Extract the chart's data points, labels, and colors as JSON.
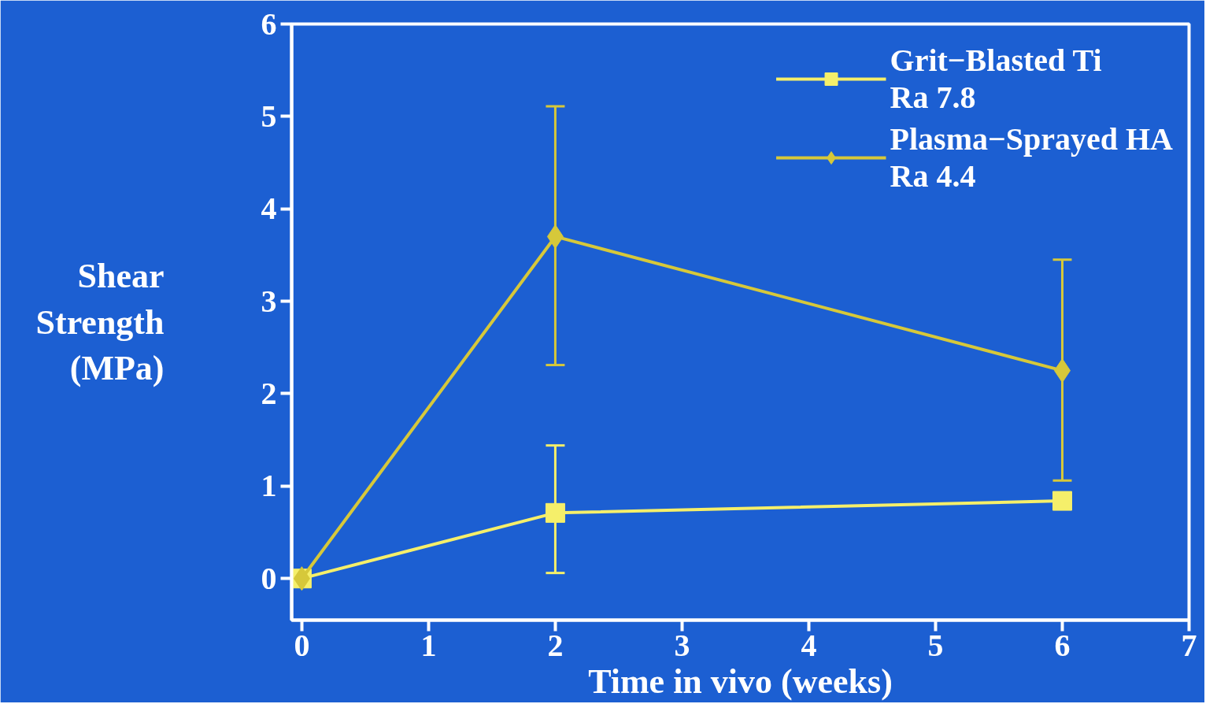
{
  "chart_data": {
    "type": "line",
    "xlabel": "Time in vivo (weeks)",
    "ylabel": "Shear\nStrength\n(MPa)",
    "x": [
      0,
      2,
      6
    ],
    "series": [
      {
        "name": "Grit−Blasted Ti\nRa 7.8",
        "color": "#f5ef6a",
        "marker": "square",
        "values": [
          0,
          0.71,
          0.84
        ],
        "errors": [
          null,
          [
            0.06,
            1.44
          ],
          null
        ]
      },
      {
        "name": "Plasma−Sprayed HA\nRa 4.4",
        "color": "#d6c83a",
        "marker": "diamond",
        "values": [
          0,
          3.7,
          2.25
        ],
        "errors": [
          null,
          [
            2.31,
            5.11
          ],
          [
            1.06,
            3.45
          ]
        ]
      }
    ],
    "xlim": [
      -0.08,
      7
    ],
    "xticks": [
      0,
      1,
      2,
      3,
      4,
      5,
      6,
      7
    ],
    "ylim": [
      -0.45,
      6
    ],
    "yticks": [
      0,
      1,
      2,
      3,
      4,
      5,
      6
    ],
    "grid": false,
    "legend": "top right"
  }
}
